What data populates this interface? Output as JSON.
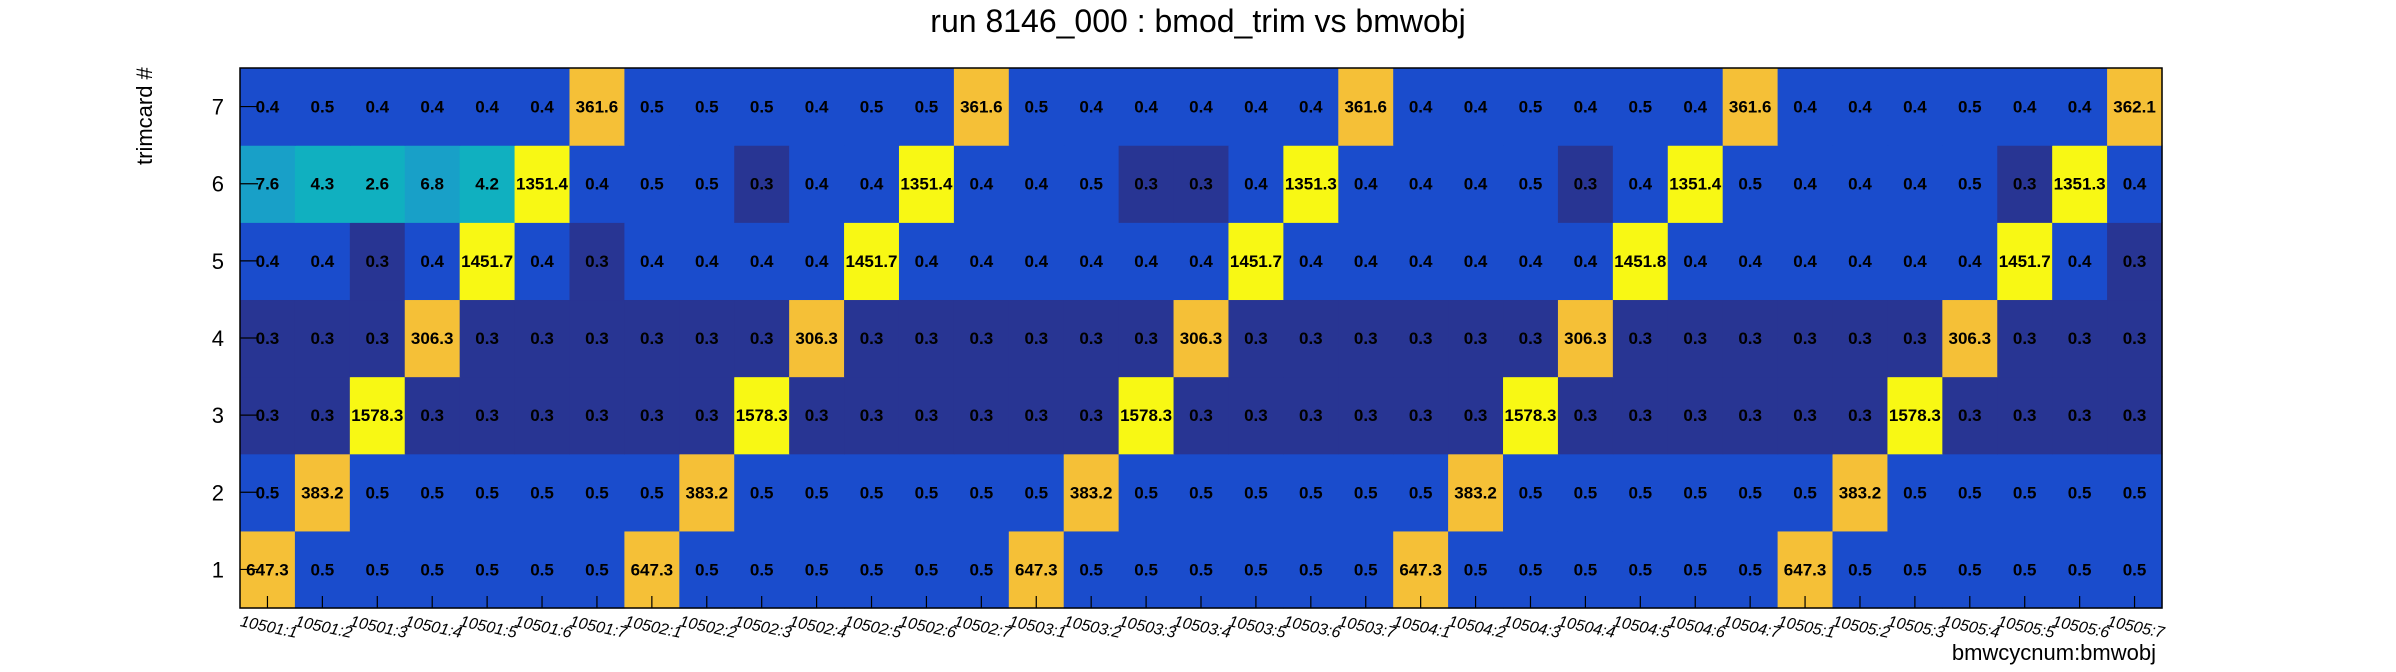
{
  "chart_data": {
    "type": "heatmap",
    "title": "run 8146_000 : bmod_trim vs bmwobj",
    "xlabel": "bmwcycnum:bmwobj",
    "ylabel": "trimcard #",
    "x_categories": [
      "10501:1",
      "10501:2",
      "10501:3",
      "10501:4",
      "10501:5",
      "10501:6",
      "10501:7",
      "10502:1",
      "10502:2",
      "10502:3",
      "10502:4",
      "10502:5",
      "10502:6",
      "10502:7",
      "10503:1",
      "10503:2",
      "10503:3",
      "10503:4",
      "10503:5",
      "10503:6",
      "10503:7",
      "10504:1",
      "10504:2",
      "10504:3",
      "10504:4",
      "10504:5",
      "10504:6",
      "10504:7",
      "10505:1",
      "10505:2",
      "10505:3",
      "10505:4",
      "10505:5",
      "10505:6",
      "10505:7"
    ],
    "y_categories": [
      "1",
      "2",
      "3",
      "4",
      "5",
      "6",
      "7"
    ],
    "values": [
      [
        "647.3",
        "0.5",
        "0.5",
        "0.5",
        "0.5",
        "0.5",
        "0.5",
        "647.3",
        "0.5",
        "0.5",
        "0.5",
        "0.5",
        "0.5",
        "0.5",
        "647.3",
        "0.5",
        "0.5",
        "0.5",
        "0.5",
        "0.5",
        "0.5",
        "647.3",
        "0.5",
        "0.5",
        "0.5",
        "0.5",
        "0.5",
        "0.5",
        "647.3",
        "0.5",
        "0.5",
        "0.5",
        "0.5",
        "0.5",
        "0.5"
      ],
      [
        "0.5",
        "383.2",
        "0.5",
        "0.5",
        "0.5",
        "0.5",
        "0.5",
        "0.5",
        "383.2",
        "0.5",
        "0.5",
        "0.5",
        "0.5",
        "0.5",
        "0.5",
        "383.2",
        "0.5",
        "0.5",
        "0.5",
        "0.5",
        "0.5",
        "0.5",
        "383.2",
        "0.5",
        "0.5",
        "0.5",
        "0.5",
        "0.5",
        "0.5",
        "383.2",
        "0.5",
        "0.5",
        "0.5",
        "0.5",
        "0.5"
      ],
      [
        "0.3",
        "0.3",
        "1578.3",
        "0.3",
        "0.3",
        "0.3",
        "0.3",
        "0.3",
        "0.3",
        "1578.3",
        "0.3",
        "0.3",
        "0.3",
        "0.3",
        "0.3",
        "0.3",
        "1578.3",
        "0.3",
        "0.3",
        "0.3",
        "0.3",
        "0.3",
        "0.3",
        "1578.3",
        "0.3",
        "0.3",
        "0.3",
        "0.3",
        "0.3",
        "0.3",
        "1578.3",
        "0.3",
        "0.3",
        "0.3",
        "0.3"
      ],
      [
        "0.3",
        "0.3",
        "0.3",
        "306.3",
        "0.3",
        "0.3",
        "0.3",
        "0.3",
        "0.3",
        "0.3",
        "306.3",
        "0.3",
        "0.3",
        "0.3",
        "0.3",
        "0.3",
        "0.3",
        "306.3",
        "0.3",
        "0.3",
        "0.3",
        "0.3",
        "0.3",
        "0.3",
        "306.3",
        "0.3",
        "0.3",
        "0.3",
        "0.3",
        "0.3",
        "0.3",
        "306.3",
        "0.3",
        "0.3",
        "0.3"
      ],
      [
        "0.4",
        "0.4",
        "0.3",
        "0.4",
        "1451.7",
        "0.4",
        "0.3",
        "0.4",
        "0.4",
        "0.4",
        "0.4",
        "1451.7",
        "0.4",
        "0.4",
        "0.4",
        "0.4",
        "0.4",
        "0.4",
        "1451.7",
        "0.4",
        "0.4",
        "0.4",
        "0.4",
        "0.4",
        "0.4",
        "1451.8",
        "0.4",
        "0.4",
        "0.4",
        "0.4",
        "0.4",
        "0.4",
        "1451.7",
        "0.4",
        "0.3"
      ],
      [
        "7.6",
        "4.3",
        "2.6",
        "6.8",
        "4.2",
        "1351.4",
        "0.4",
        "0.5",
        "0.5",
        "0.3",
        "0.4",
        "0.4",
        "1351.4",
        "0.4",
        "0.4",
        "0.5",
        "0.3",
        "0.3",
        "0.4",
        "1351.3",
        "0.4",
        "0.4",
        "0.4",
        "0.5",
        "0.3",
        "0.4",
        "1351.4",
        "0.5",
        "0.4",
        "0.4",
        "0.4",
        "0.5",
        "0.3",
        "1351.3",
        "0.4"
      ],
      [
        "0.4",
        "0.5",
        "0.4",
        "0.4",
        "0.4",
        "0.4",
        "361.6",
        "0.5",
        "0.5",
        "0.5",
        "0.4",
        "0.5",
        "0.5",
        "361.6",
        "0.5",
        "0.4",
        "0.4",
        "0.4",
        "0.4",
        "0.4",
        "361.6",
        "0.4",
        "0.4",
        "0.5",
        "0.4",
        "0.5",
        "0.4",
        "361.6",
        "0.4",
        "0.4",
        "0.4",
        "0.5",
        "0.4",
        "0.4",
        "362.1"
      ]
    ],
    "colors": {
      "low": "#283593",
      "mid_low": "#1a4ccc",
      "teal_a": "#18a0c8",
      "teal_b": "#10b0c0",
      "orange": "#f5c037",
      "yellow": "#f8f814"
    },
    "grid": false,
    "legend": "none"
  }
}
